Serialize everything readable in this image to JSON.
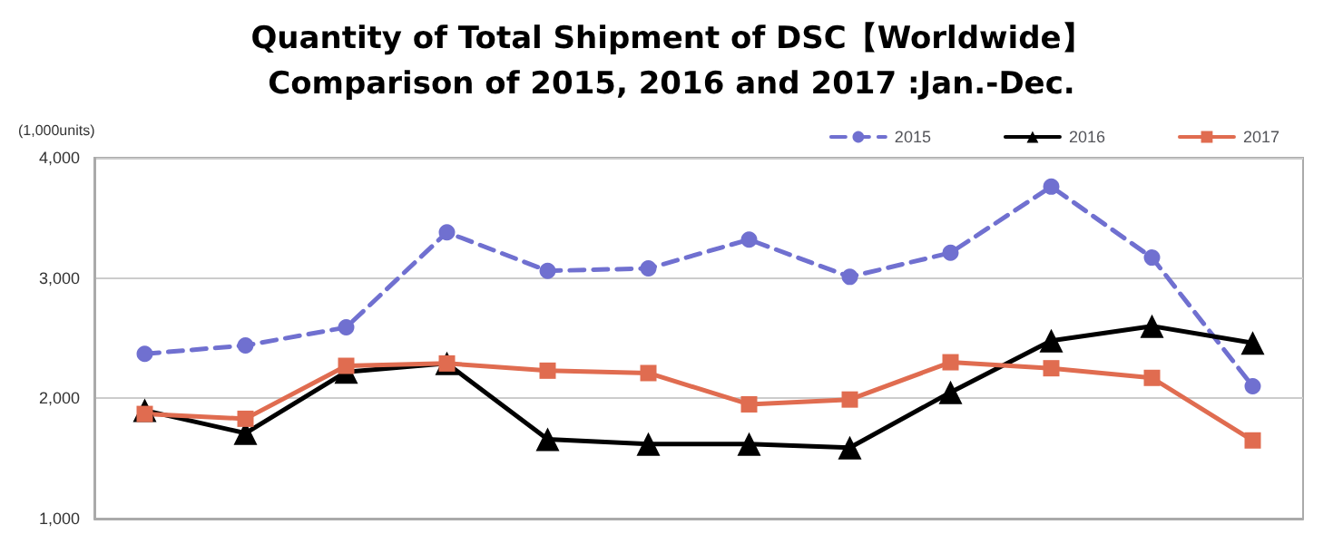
{
  "chart_data": {
    "type": "line",
    "title": "Quantity of Total Shipment of DSC【Worldwide】",
    "subtitle": "Comparison of 2015, 2016 and 2017 :Jan.-Dec.",
    "ylabel": "(1,000units)",
    "categories": [
      null,
      null,
      null,
      null,
      null,
      null,
      null,
      null,
      null,
      null,
      null,
      null
    ],
    "series": [
      {
        "name": "2015",
        "color": "#7070d0",
        "marker": "circle",
        "line_style": "dashed",
        "values": [
          2370,
          2440,
          2590,
          3380,
          3060,
          3080,
          3320,
          3010,
          3210,
          3760,
          3170,
          2100
        ]
      },
      {
        "name": "2016",
        "color": "#000000",
        "marker": "triangle",
        "line_style": "solid",
        "values": [
          1900,
          1710,
          2220,
          2290,
          1660,
          1620,
          1620,
          1590,
          2050,
          2480,
          2600,
          2460
        ]
      },
      {
        "name": "2017",
        "color": "#e06c50",
        "marker": "square",
        "line_style": "solid",
        "values": [
          1870,
          1830,
          2270,
          2290,
          2230,
          2210,
          1950,
          1990,
          2300,
          2250,
          2170,
          1650
        ]
      }
    ],
    "ylim": [
      1000,
      4000
    ],
    "yticks": [
      {
        "value": 1000,
        "label": "1,000"
      },
      {
        "value": 2000,
        "label": "2,000"
      },
      {
        "value": 3000,
        "label": "3,000"
      },
      {
        "value": 4000,
        "label": "4,000"
      }
    ],
    "grid": "y",
    "legend": "top right"
  }
}
